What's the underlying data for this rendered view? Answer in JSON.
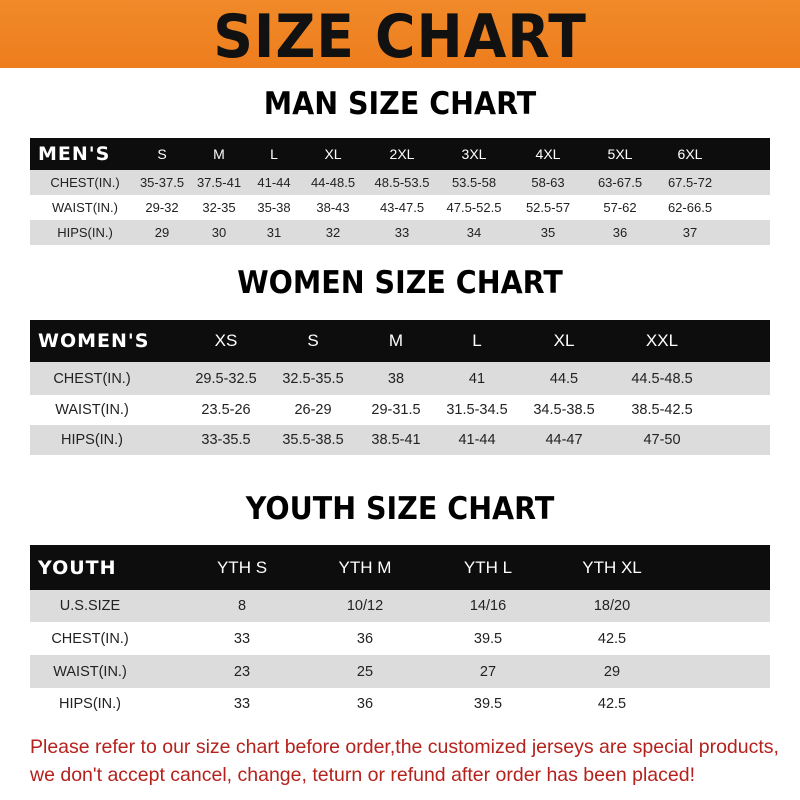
{
  "title": "SIZE CHART",
  "colors": {
    "banner": "#ee7d1c",
    "header_row": "#0d0d0d",
    "shaded_row": "#dcdcdc",
    "notice": "#b5211c"
  },
  "men": {
    "title": "MAN SIZE CHART",
    "header": [
      "MEN'S",
      "S",
      "M",
      "L",
      "XL",
      "2XL",
      "3XL",
      "4XL",
      "5XL",
      "6XL"
    ],
    "rows": [
      [
        "CHEST(IN.)",
        "35-37.5",
        "37.5-41",
        "41-44",
        "44-48.5",
        "48.5-53.5",
        "53.5-58",
        "58-63",
        "63-67.5",
        "67.5-72"
      ],
      [
        "WAIST(IN.)",
        "29-32",
        "32-35",
        "35-38",
        "38-43",
        "43-47.5",
        "47.5-52.5",
        "52.5-57",
        "57-62",
        "62-66.5"
      ],
      [
        "HIPS(IN.)",
        "29",
        "30",
        "31",
        "32",
        "33",
        "34",
        "35",
        "36",
        "37"
      ]
    ]
  },
  "women": {
    "title": "WOMEN SIZE CHART",
    "header": [
      "WOMEN'S",
      "XS",
      "S",
      "M",
      "L",
      "XL",
      "XXL"
    ],
    "rows": [
      [
        "CHEST(IN.)",
        "29.5-32.5",
        "32.5-35.5",
        "38",
        "41",
        "44.5",
        "44.5-48.5"
      ],
      [
        "WAIST(IN.)",
        "23.5-26",
        "26-29",
        "29-31.5",
        "31.5-34.5",
        "34.5-38.5",
        "38.5-42.5"
      ],
      [
        "HIPS(IN.)",
        "33-35.5",
        "35.5-38.5",
        "38.5-41",
        "41-44",
        "44-47",
        "47-50"
      ]
    ]
  },
  "youth": {
    "title": "YOUTH SIZE CHART",
    "header": [
      "YOUTH",
      "YTH S",
      "YTH M",
      "YTH L",
      "YTH XL"
    ],
    "rows": [
      [
        "U.S.SIZE",
        "8",
        "10/12",
        "14/16",
        "18/20"
      ],
      [
        "CHEST(IN.)",
        "33",
        "36",
        "39.5",
        "42.5"
      ],
      [
        "WAIST(IN.)",
        "23",
        "25",
        "27",
        "29"
      ],
      [
        "HIPS(IN.)",
        "33",
        "36",
        "39.5",
        "42.5"
      ]
    ]
  },
  "notice": {
    "line1": "Please refer to our size chart before order,the customized jerseys are special products,",
    "line2": "we don't accept cancel, change, teturn or refund after order has been placed!"
  }
}
